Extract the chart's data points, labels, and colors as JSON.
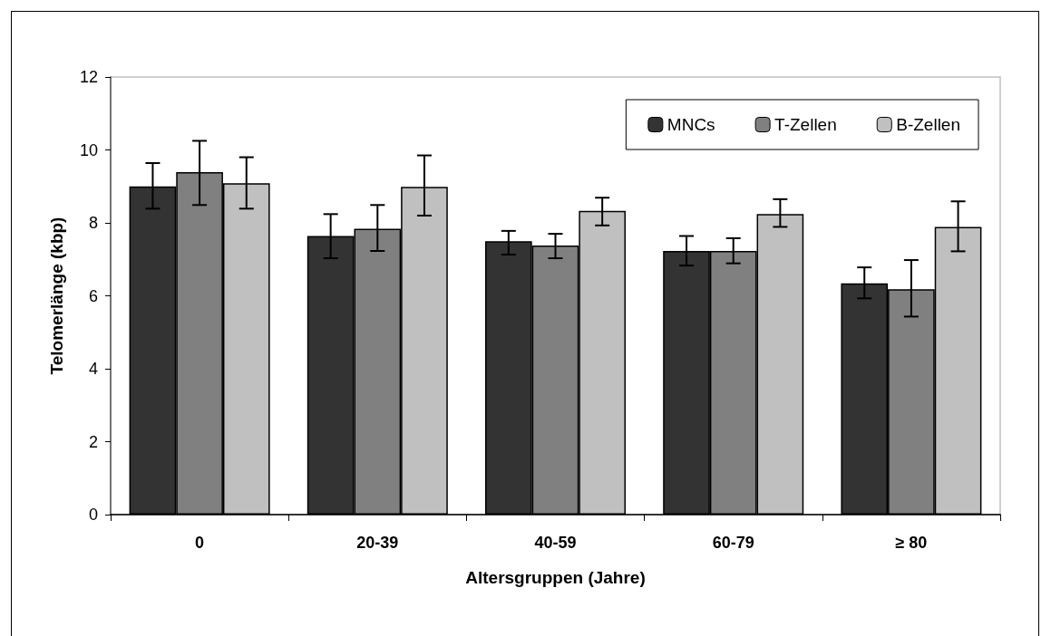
{
  "chart_data": {
    "type": "bar",
    "xlabel": "Altersgruppen (Jahre)",
    "ylabel": "Telomerlänge (kbp)",
    "categories": [
      "0",
      "20-39",
      "40-59",
      "60-79",
      "≥ 80"
    ],
    "series": [
      {
        "name": "MNCs",
        "color": "#333333",
        "values": [
          9.0,
          7.64,
          7.5,
          7.23,
          6.34
        ],
        "errors": [
          [
            8.39,
            9.64
          ],
          [
            7.03,
            8.24
          ],
          [
            7.13,
            7.78
          ],
          [
            6.83,
            7.64
          ],
          [
            5.93,
            6.78
          ]
        ]
      },
      {
        "name": "T-Zellen",
        "color": "#808080",
        "values": [
          9.39,
          7.84,
          7.38,
          7.23,
          6.18
        ],
        "errors": [
          [
            8.49,
            10.25
          ],
          [
            7.23,
            8.49
          ],
          [
            7.03,
            7.7
          ],
          [
            6.89,
            7.58
          ],
          [
            5.43,
            6.98
          ]
        ]
      },
      {
        "name": "B-Zellen",
        "color": "#c0c0c0",
        "values": [
          9.09,
          8.99,
          8.33,
          8.24,
          7.89
        ],
        "errors": [
          [
            8.39,
            9.8
          ],
          [
            8.2,
            9.85
          ],
          [
            7.93,
            8.69
          ],
          [
            7.89,
            8.65
          ],
          [
            7.22,
            8.59
          ]
        ]
      }
    ],
    "ylim": [
      0,
      12
    ],
    "yticks": [
      0,
      2,
      4,
      6,
      8,
      10,
      12
    ],
    "grid": false,
    "legend": "top right"
  }
}
